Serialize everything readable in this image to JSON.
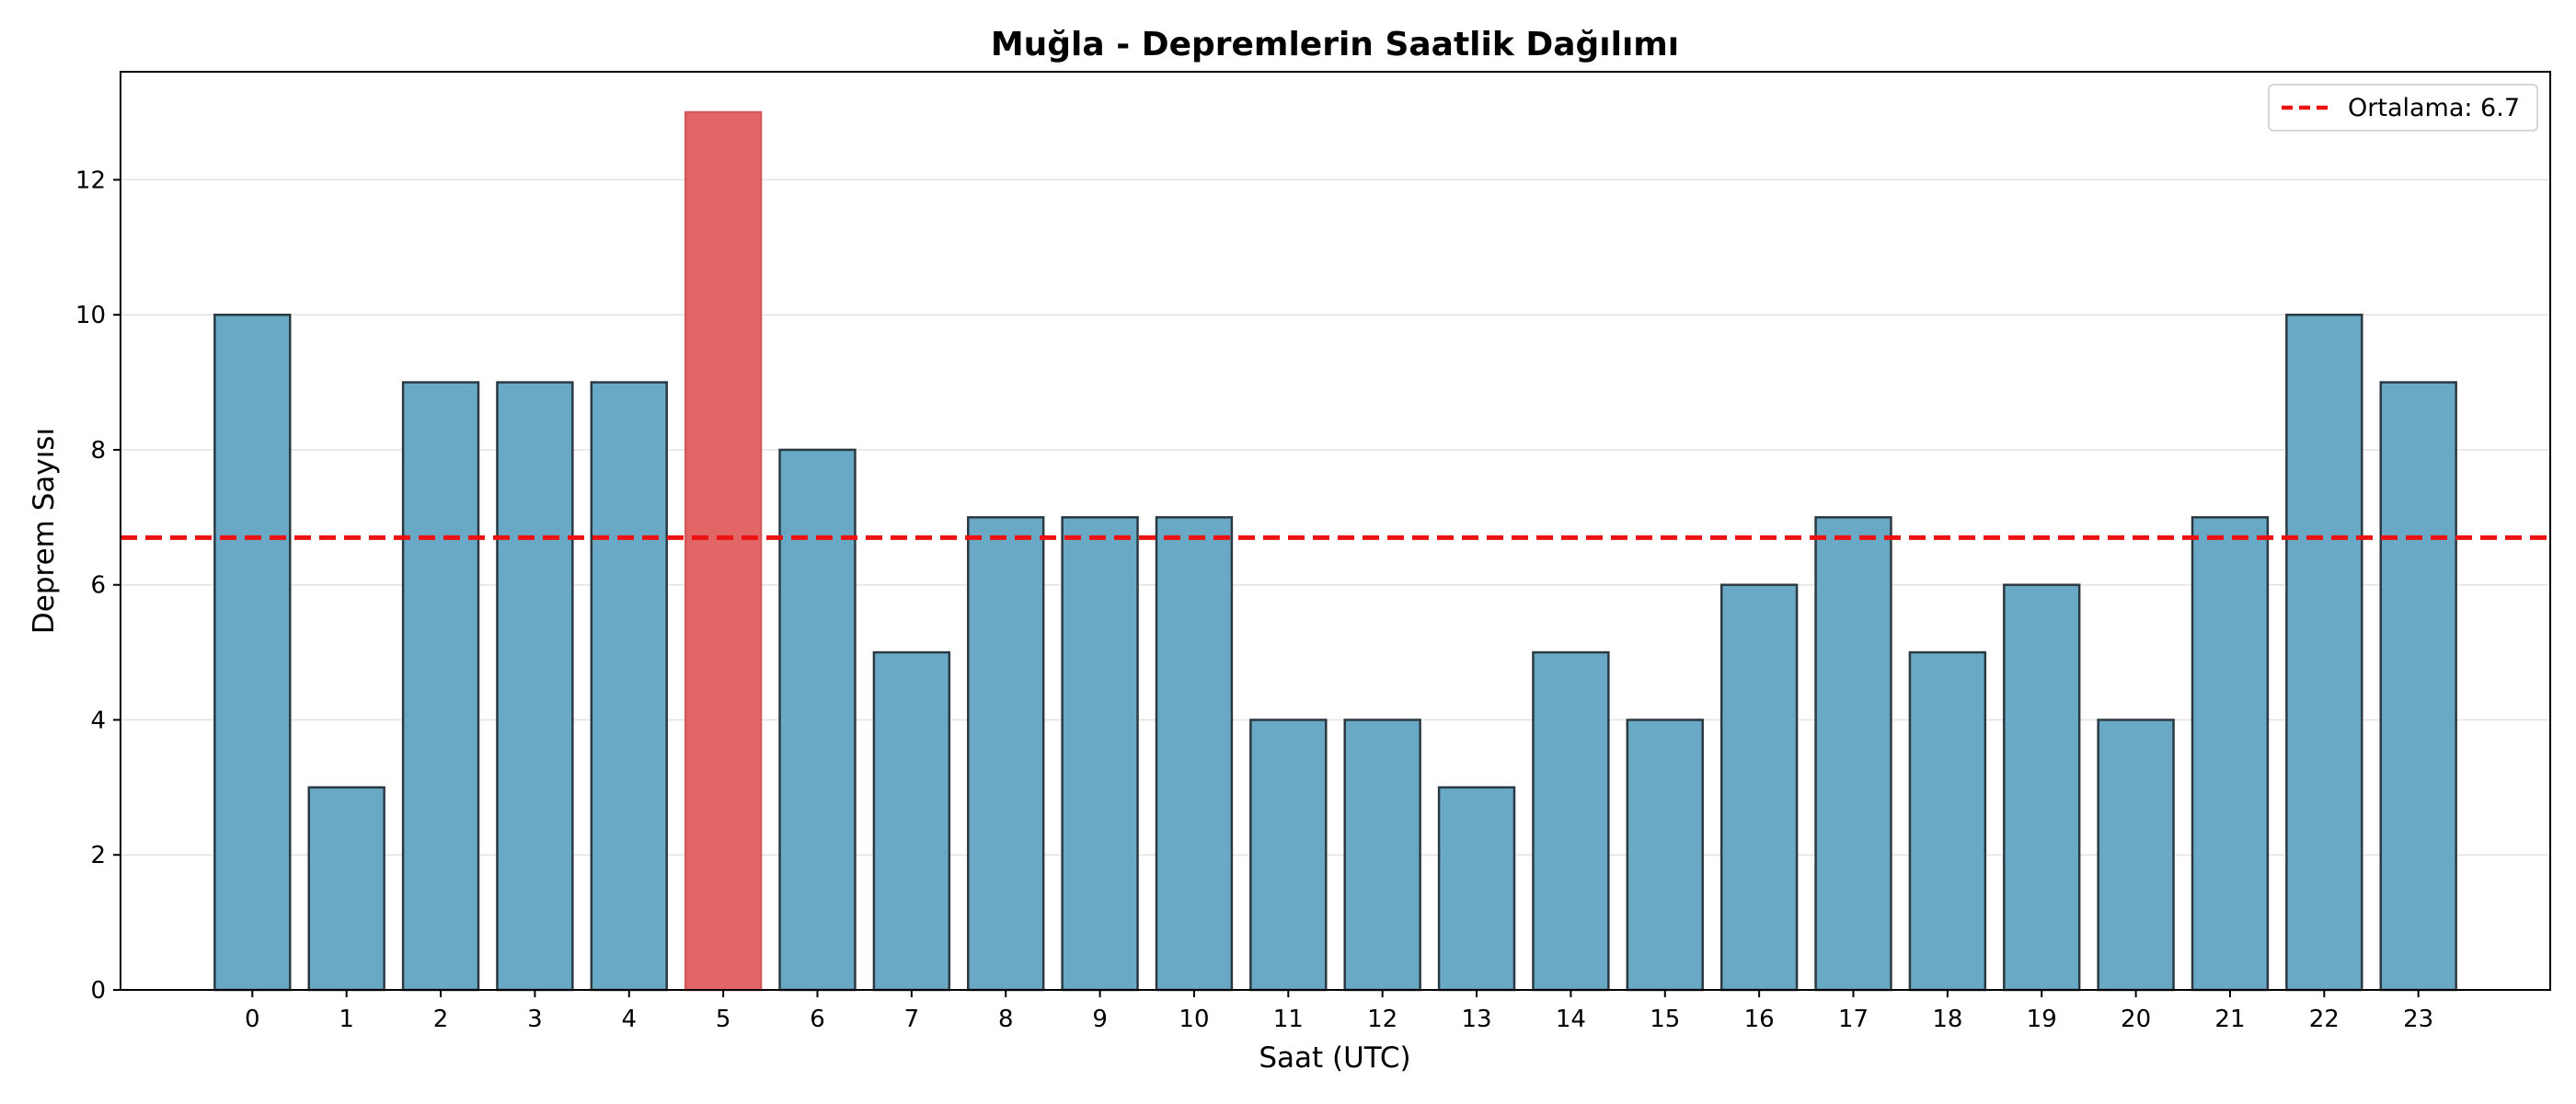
{
  "chart_data": {
    "type": "bar",
    "title": "Muğla - Depremlerin Saatlik Dağılımı",
    "xlabel": "Saat (UTC)",
    "ylabel": "Deprem Sayısı",
    "categories": [
      "0",
      "1",
      "2",
      "3",
      "4",
      "5",
      "6",
      "7",
      "8",
      "9",
      "10",
      "11",
      "12",
      "13",
      "14",
      "15",
      "16",
      "17",
      "18",
      "19",
      "20",
      "21",
      "22",
      "23"
    ],
    "values": [
      10,
      3,
      9,
      9,
      9,
      13,
      8,
      5,
      7,
      7,
      7,
      4,
      4,
      3,
      5,
      4,
      6,
      7,
      5,
      6,
      4,
      7,
      10,
      9
    ],
    "highlight_index": 5,
    "ylim": [
      0,
      13.6
    ],
    "yticks": [
      0,
      2,
      4,
      6,
      8,
      10,
      12
    ],
    "grid": "y",
    "reference_line": {
      "value": 6.7,
      "label": "Ortalama: 6.7",
      "style": "dashed"
    },
    "legend_position": "top-right",
    "colors": {
      "bar": "#6aa9c5",
      "highlight_bar": "#e36666",
      "bar_edge": "#2b3a42",
      "reference_line": "#ee1111",
      "grid": "#e3e3e3"
    }
  }
}
